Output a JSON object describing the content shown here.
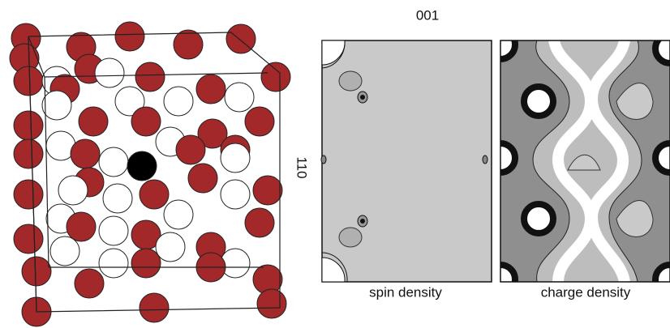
{
  "structure_view": {
    "axis_label": "110"
  },
  "density_maps": {
    "direction_label": "001",
    "panels": [
      {
        "label": "spin density"
      },
      {
        "label": "charge density"
      }
    ]
  }
}
